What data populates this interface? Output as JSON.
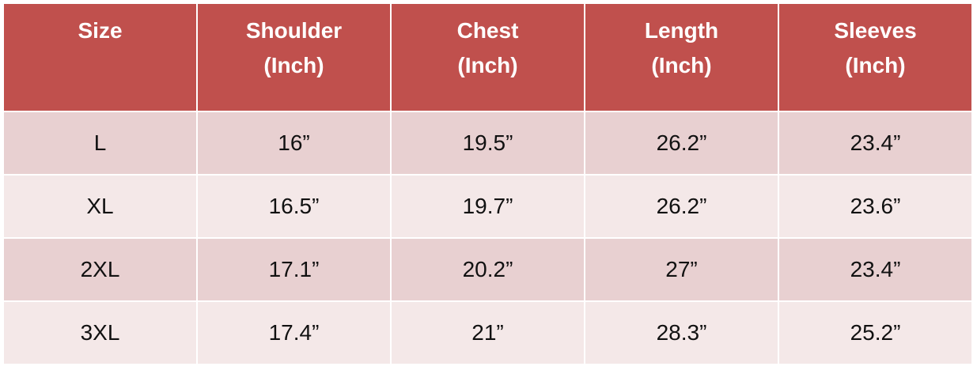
{
  "table": {
    "header": [
      [
        "Size"
      ],
      [
        "Shoulder",
        "(Inch)"
      ],
      [
        "Chest",
        "(Inch)"
      ],
      [
        "Length",
        "(Inch)"
      ],
      [
        "Sleeves",
        "(Inch)"
      ]
    ],
    "rows": [
      [
        "L",
        "16”",
        "19.5”",
        "26.2”",
        "23.4”"
      ],
      [
        "XL",
        "16.5”",
        "19.7”",
        "26.2”",
        "23.6”"
      ],
      [
        "2XL",
        "17.1”",
        "20.2”",
        "27”",
        "23.4”"
      ],
      [
        "3XL",
        "17.4”",
        "21”",
        "28.3”",
        "25.2”"
      ]
    ]
  }
}
